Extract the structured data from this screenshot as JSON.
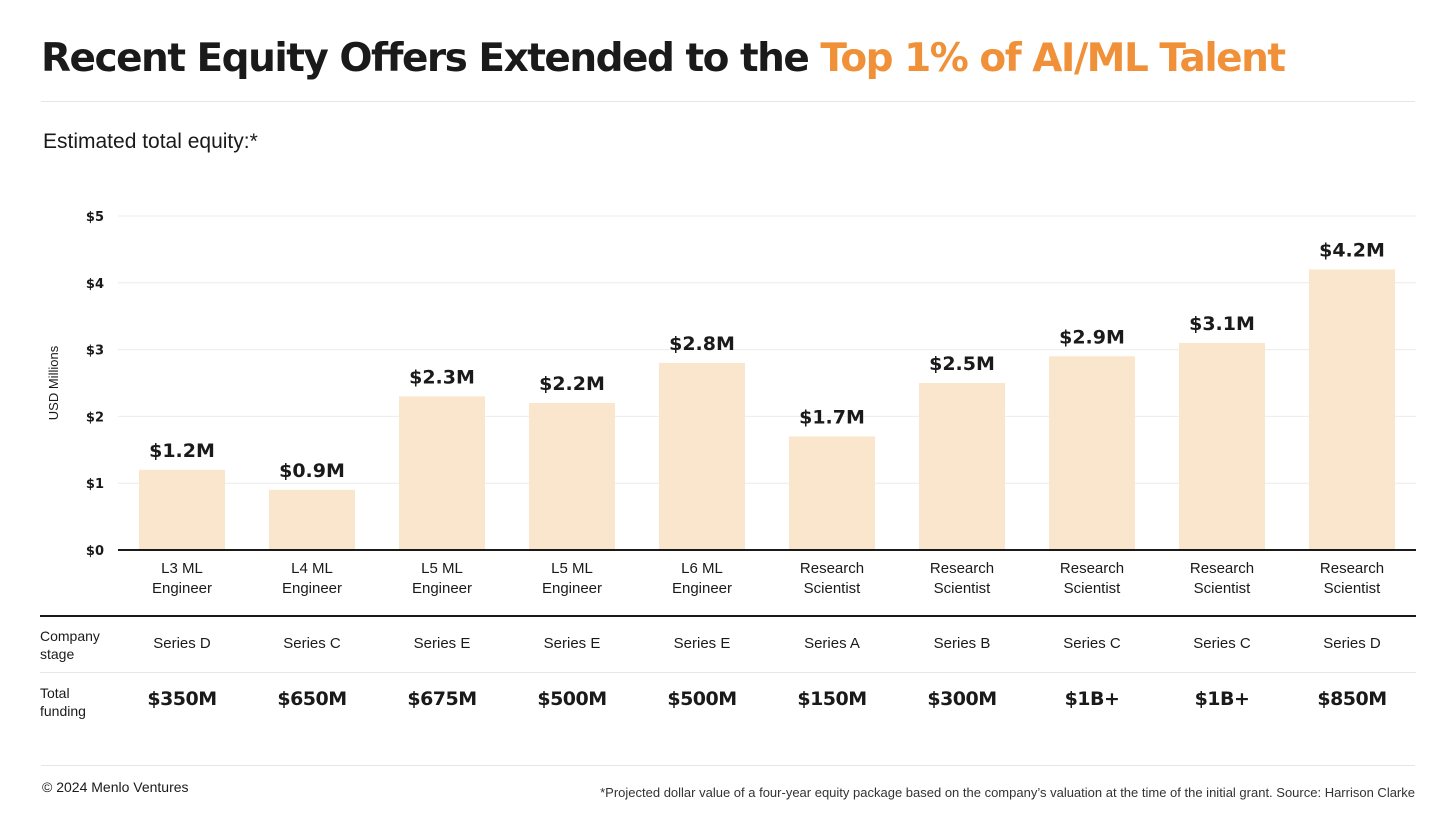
{
  "header": {
    "title_main": "Recent Equity Offers Extended to the ",
    "title_accent": "Top 1% of AI/ML Talent",
    "subtitle": "Estimated total equity:*"
  },
  "colors": {
    "accent": "#f0913a",
    "bar": "#fae6cc"
  },
  "chart_data": {
    "type": "bar",
    "ylabel": "USD Millions",
    "ylim": [
      0,
      5
    ],
    "yticks": [
      0,
      1,
      2,
      3,
      4,
      5
    ],
    "ytick_labels": [
      "$0",
      "$1",
      "$2",
      "$3",
      "$4",
      "$5"
    ],
    "grid": true,
    "categories": [
      [
        "L3 ML",
        "Engineer"
      ],
      [
        "L4 ML",
        "Engineer"
      ],
      [
        "L5 ML",
        "Engineer"
      ],
      [
        "L5 ML",
        "Engineer"
      ],
      [
        "L6 ML",
        "Engineer"
      ],
      [
        "Research",
        "Scientist"
      ],
      [
        "Research",
        "Scientist"
      ],
      [
        "Research",
        "Scientist"
      ],
      [
        "Research",
        "Scientist"
      ],
      [
        "Research",
        "Scientist"
      ]
    ],
    "values": [
      1.2,
      0.9,
      2.3,
      2.2,
      2.8,
      1.7,
      2.5,
      2.9,
      3.1,
      4.2
    ],
    "data_labels": [
      "$1.2M",
      "$0.9M",
      "$2.3M",
      "$2.2M",
      "$2.8M",
      "$1.7M",
      "$2.5M",
      "$2.9M",
      "$3.1M",
      "$4.2M"
    ]
  },
  "table": {
    "stage_label": [
      "Company",
      "stage"
    ],
    "funding_label": [
      "Total",
      "funding"
    ],
    "stages": [
      "Series D",
      "Series C",
      "Series E",
      "Series E",
      "Series E",
      "Series A",
      "Series B",
      "Series C",
      "Series C",
      "Series D"
    ],
    "funding": [
      "$350M",
      "$650M",
      "$675M",
      "$500M",
      "$500M",
      "$150M",
      "$300M",
      "$1B+",
      "$1B+",
      "$850M"
    ]
  },
  "footer": {
    "copyright": "© 2024 Menlo Ventures",
    "note": "*Projected dollar value of a four-year equity package based on the company’s valuation at the time of the initial grant. Source: Harrison Clarke"
  }
}
